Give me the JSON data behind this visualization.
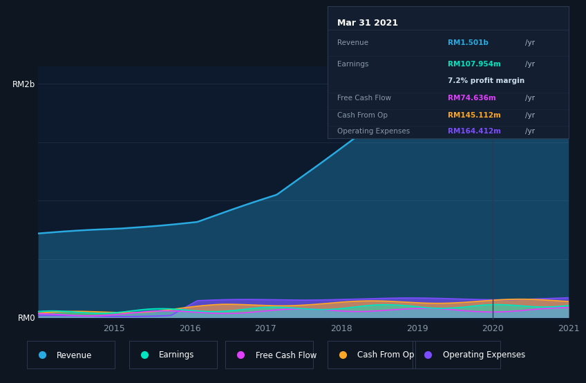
{
  "bg_color": "#0e1621",
  "plot_bg_color": "#0d1a2e",
  "info_box_bg": "#131f30",
  "info_box_border": "#2a3a50",
  "ylabel_rm2b": "RM2b",
  "ylabel_rm0": "RM0",
  "xtick_labels": [
    "2015",
    "2016",
    "2017",
    "2018",
    "2019",
    "2020",
    "2021"
  ],
  "grid_color": "#1e2d42",
  "revenue_color": "#29abe2",
  "earnings_color": "#00e5c0",
  "free_cash_flow_color": "#e040fb",
  "cash_from_op_color": "#ffa726",
  "operating_expenses_color": "#7c4dff",
  "info": {
    "date": "Mar 31 2021",
    "revenue_label": "Revenue",
    "revenue_value": "RM1.501b",
    "revenue_unit": "/yr",
    "earnings_label": "Earnings",
    "earnings_value": "RM107.954m",
    "earnings_unit": "/yr",
    "profit_margin": "7.2% profit margin",
    "fcf_label": "Free Cash Flow",
    "fcf_value": "RM74.636m",
    "fcf_unit": "/yr",
    "cashop_label": "Cash From Op",
    "cashop_value": "RM145.112m",
    "cashop_unit": "/yr",
    "opex_label": "Operating Expenses",
    "opex_value": "RM164.412m",
    "opex_unit": "/yr"
  },
  "legend": [
    {
      "label": "Revenue",
      "color": "#29abe2"
    },
    {
      "label": "Earnings",
      "color": "#00e5c0"
    },
    {
      "label": "Free Cash Flow",
      "color": "#e040fb"
    },
    {
      "label": "Cash From Op",
      "color": "#ffa726"
    },
    {
      "label": "Operating Expenses",
      "color": "#7c4dff"
    }
  ]
}
